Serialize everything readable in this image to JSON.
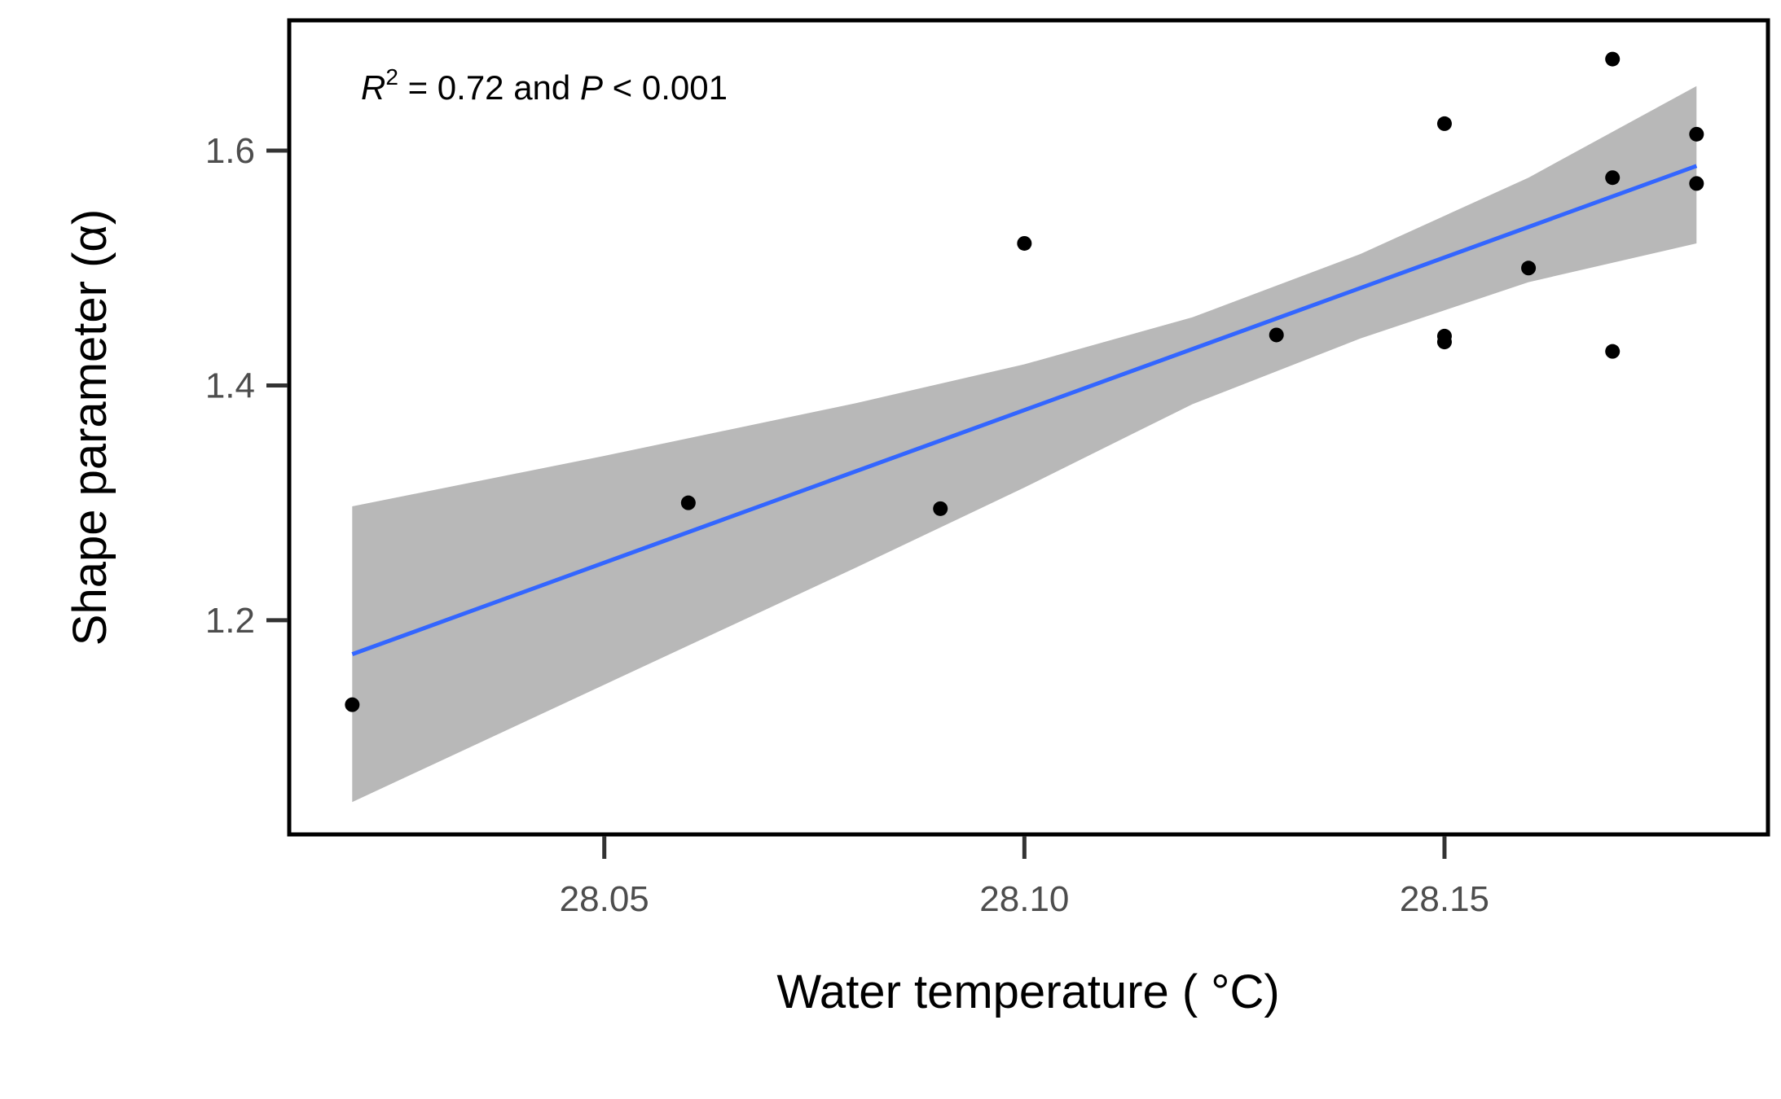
{
  "chart_data": {
    "type": "scatter",
    "xlabel": "Water temperature ( °C)",
    "ylabel": "Shape parameter (α)",
    "xlim": [
      28.0125,
      28.1885
    ],
    "ylim": [
      1.0175,
      1.711
    ],
    "xticks": [
      28.05,
      28.1,
      28.15
    ],
    "xtick_labels": [
      "28.05",
      "28.10",
      "28.15"
    ],
    "yticks": [
      1.2,
      1.4,
      1.6
    ],
    "ytick_labels": [
      "1.2",
      "1.4",
      "1.6"
    ],
    "grid": false,
    "annotation": {
      "r_symbol": "R",
      "r_exponent": "2",
      "r_value": " = 0.72 and ",
      "p_symbol": "P",
      "p_value": " < 0.001"
    },
    "points": [
      {
        "x": 28.02,
        "y": 1.128
      },
      {
        "x": 28.06,
        "y": 1.3
      },
      {
        "x": 28.09,
        "y": 1.295
      },
      {
        "x": 28.1,
        "y": 1.521
      },
      {
        "x": 28.13,
        "y": 1.443
      },
      {
        "x": 28.15,
        "y": 1.623
      },
      {
        "x": 28.15,
        "y": 1.442
      },
      {
        "x": 28.15,
        "y": 1.437
      },
      {
        "x": 28.16,
        "y": 1.5
      },
      {
        "x": 28.17,
        "y": 1.678
      },
      {
        "x": 28.17,
        "y": 1.577
      },
      {
        "x": 28.17,
        "y": 1.429
      },
      {
        "x": 28.18,
        "y": 1.614
      },
      {
        "x": 28.18,
        "y": 1.572
      }
    ],
    "fit_line": {
      "x": [
        28.02,
        28.18
      ],
      "y": [
        1.171,
        1.587
      ]
    },
    "confidence_band": {
      "x": [
        28.02,
        28.05,
        28.08,
        28.1,
        28.12,
        28.14,
        28.16,
        28.18
      ],
      "upper": [
        1.297,
        1.34,
        1.385,
        1.418,
        1.458,
        1.512,
        1.577,
        1.655
      ],
      "lower": [
        1.045,
        1.145,
        1.245,
        1.313,
        1.384,
        1.44,
        1.488,
        1.521
      ]
    },
    "colors": {
      "points": "#000000",
      "fit_line": "#3366ff",
      "confidence_band": "#b8b8b8",
      "panel_border": "#000000",
      "ticks": "#333333"
    }
  }
}
